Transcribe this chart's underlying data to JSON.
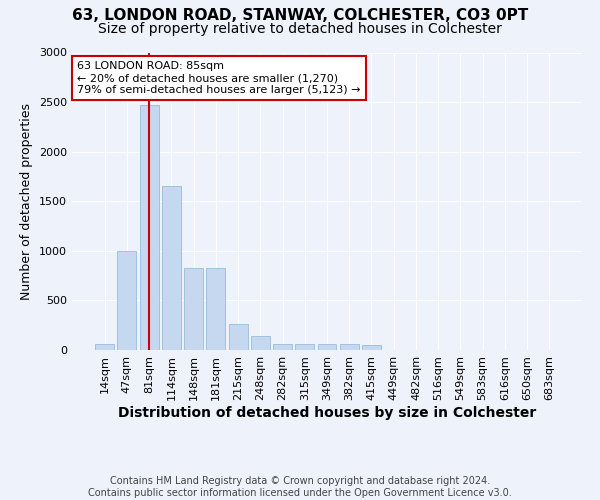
{
  "title1": "63, LONDON ROAD, STANWAY, COLCHESTER, CO3 0PT",
  "title2": "Size of property relative to detached houses in Colchester",
  "xlabel": "Distribution of detached houses by size in Colchester",
  "ylabel": "Number of detached properties",
  "categories": [
    "14sqm",
    "47sqm",
    "81sqm",
    "114sqm",
    "148sqm",
    "181sqm",
    "215sqm",
    "248sqm",
    "282sqm",
    "315sqm",
    "349sqm",
    "382sqm",
    "415sqm",
    "449sqm",
    "482sqm",
    "516sqm",
    "549sqm",
    "583sqm",
    "616sqm",
    "650sqm",
    "683sqm"
  ],
  "values": [
    60,
    1000,
    2470,
    1650,
    830,
    830,
    260,
    140,
    60,
    60,
    60,
    60,
    55,
    5,
    5,
    5,
    5,
    5,
    5,
    5,
    5
  ],
  "bar_color": "#c5d8f0",
  "bar_edgecolor": "#8ab4d8",
  "vline_x_index": 2,
  "vline_color": "#cc0000",
  "annotation_line1": "63 LONDON ROAD: 85sqm",
  "annotation_line2": "← 20% of detached houses are smaller (1,270)",
  "annotation_line3": "79% of semi-detached houses are larger (5,123) →",
  "annotation_box_color": "#cc0000",
  "footer": "Contains HM Land Registry data © Crown copyright and database right 2024.\nContains public sector information licensed under the Open Government Licence v3.0.",
  "ylim": [
    0,
    3000
  ],
  "background_color": "#eef2fa",
  "plot_bg_color": "#eef2fa",
  "title1_fontsize": 11,
  "title2_fontsize": 10,
  "xlabel_fontsize": 10,
  "ylabel_fontsize": 9,
  "tick_fontsize": 8,
  "annotation_fontsize": 8,
  "footer_fontsize": 7
}
